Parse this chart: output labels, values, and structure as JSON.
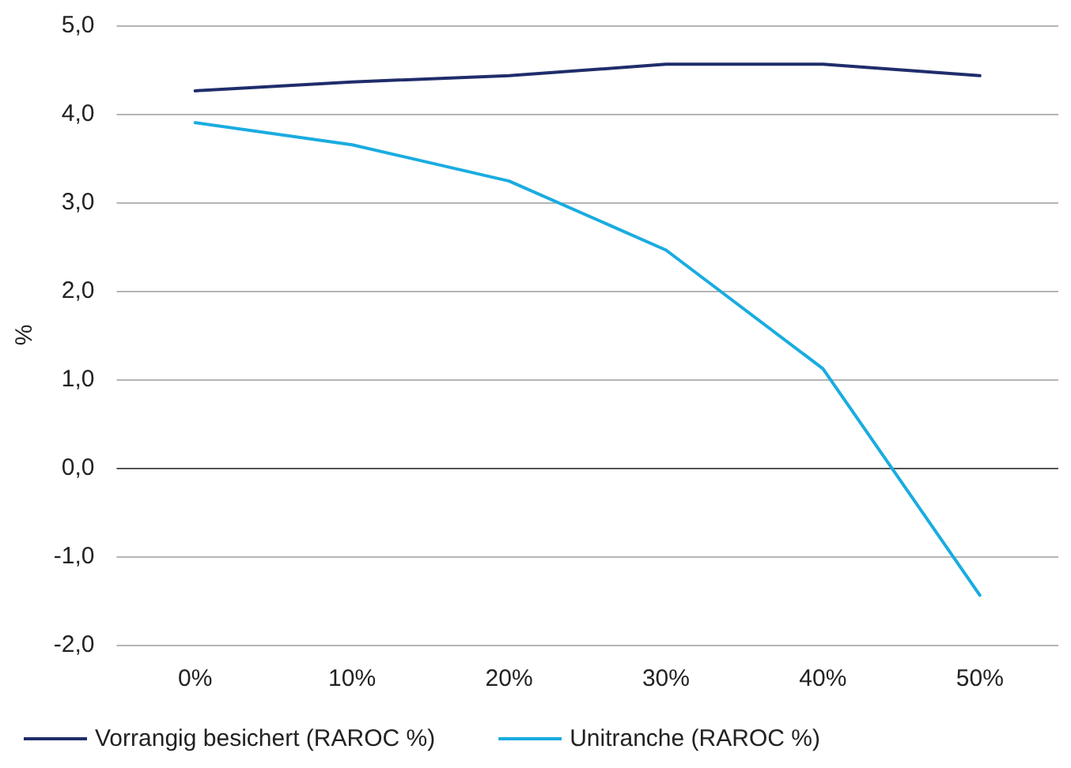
{
  "chart_data": {
    "type": "line",
    "ylabel": "%",
    "categories": [
      "0%",
      "10%",
      "20%",
      "30%",
      "40%",
      "50%"
    ],
    "series": [
      {
        "name": "Vorrangig besichert (RAROC %)",
        "color": "#1f2d6b",
        "values": [
          4.26,
          4.36,
          4.43,
          4.56,
          4.56,
          4.43
        ]
      },
      {
        "name": "Unitranche (RAROC %)",
        "color": "#1aace0",
        "values": [
          3.9,
          3.65,
          3.24,
          2.46,
          1.12,
          -1.44
        ]
      }
    ],
    "ylim": [
      -2,
      5
    ],
    "yticks": [
      {
        "value": -2,
        "label": "-2,0"
      },
      {
        "value": -1,
        "label": "-1,0"
      },
      {
        "value": 0,
        "label": "0,0"
      },
      {
        "value": 1,
        "label": "1,0"
      },
      {
        "value": 2,
        "label": "2,0"
      },
      {
        "value": 3,
        "label": "3,0"
      },
      {
        "value": 4,
        "label": "4,0"
      },
      {
        "value": 5,
        "label": "5,0"
      }
    ],
    "grid": "y",
    "legend": "bottom left",
    "marker": "none",
    "line_style": "solid"
  }
}
